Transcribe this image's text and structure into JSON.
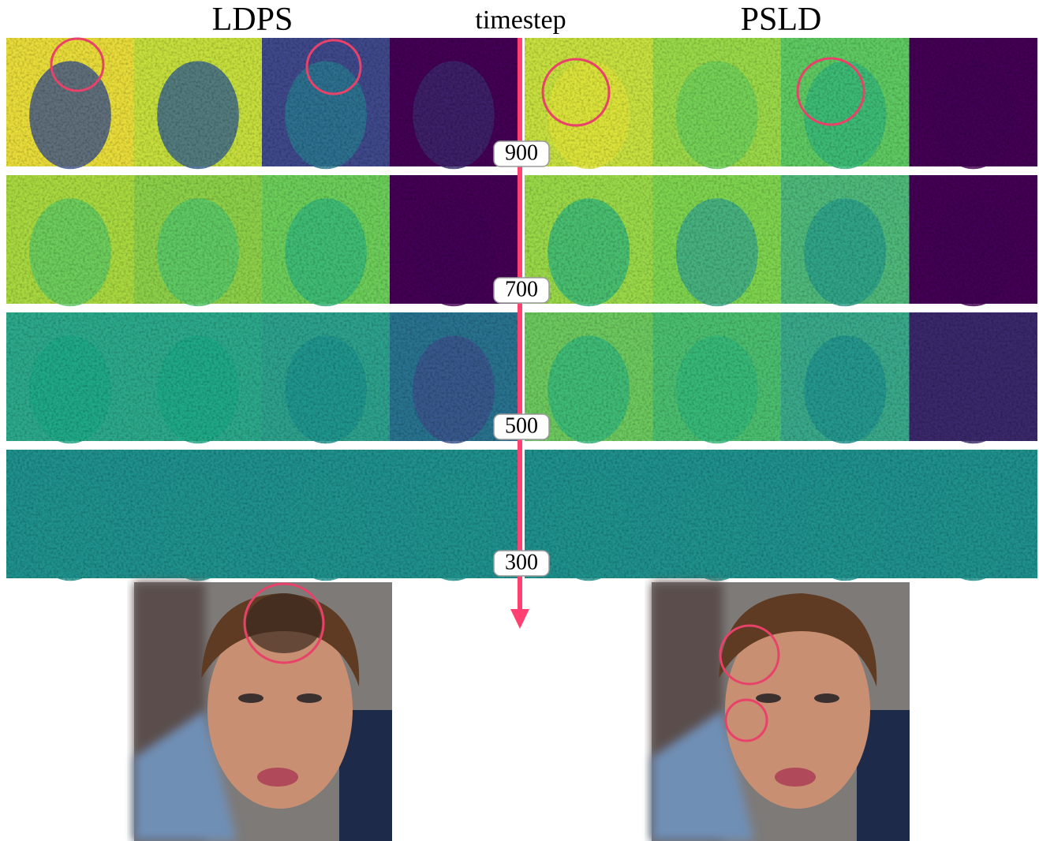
{
  "header": {
    "left_title": "LDPS",
    "center_title": "timestep",
    "right_title": "PSLD"
  },
  "timesteps": [
    900,
    700,
    500,
    300
  ]
}
